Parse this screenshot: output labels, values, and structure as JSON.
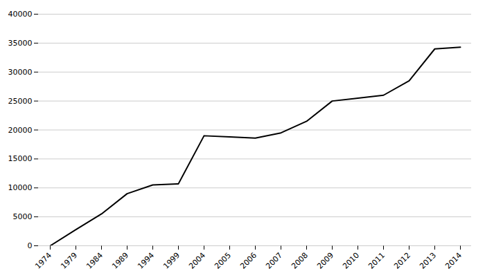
{
  "chart_data": {
    "type": "line",
    "categories": [
      "1974",
      "1979",
      "1984",
      "1989",
      "1994",
      "1999",
      "2004",
      "2005",
      "2006",
      "2007",
      "2008",
      "2009",
      "2010",
      "2011",
      "2012",
      "2013",
      "2014"
    ],
    "values": [
      0,
      2800,
      5500,
      9000,
      10500,
      10700,
      19000,
      18800,
      18600,
      19500,
      21500,
      25000,
      25500,
      26000,
      28500,
      34000,
      34300
    ],
    "ylim": [
      0,
      40000
    ],
    "yticks": [
      0,
      5000,
      10000,
      15000,
      20000,
      25000,
      30000,
      35000,
      40000
    ],
    "grid": true
  }
}
